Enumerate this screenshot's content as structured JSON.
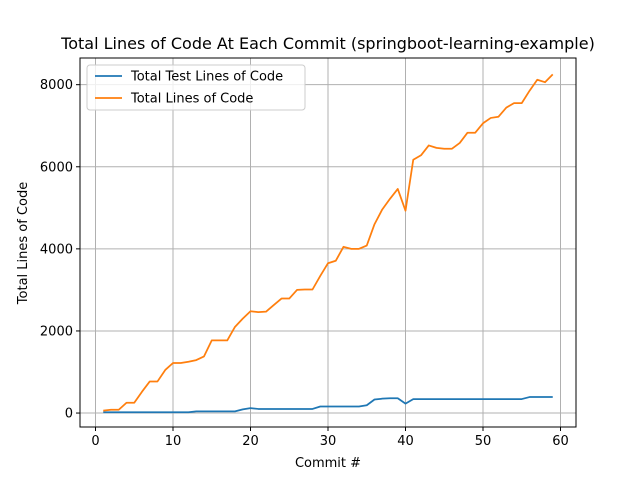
{
  "chart_data": {
    "type": "line",
    "title": "Total Lines of Code At Each Commit (springboot-learning-example)",
    "xlabel": "Commit #",
    "ylabel": "Total Lines of Code",
    "xlim": [
      -2,
      62
    ],
    "ylim": [
      -340,
      8650
    ],
    "xticks": [
      0,
      10,
      20,
      30,
      40,
      50,
      60
    ],
    "yticks": [
      0,
      2000,
      4000,
      6000,
      8000
    ],
    "grid": true,
    "legend_position": "upper-left",
    "x": [
      1,
      2,
      3,
      4,
      5,
      6,
      7,
      8,
      9,
      10,
      11,
      12,
      13,
      14,
      15,
      16,
      17,
      18,
      19,
      20,
      21,
      22,
      23,
      24,
      25,
      26,
      27,
      28,
      29,
      30,
      31,
      32,
      33,
      34,
      35,
      36,
      37,
      38,
      39,
      40,
      41,
      42,
      43,
      44,
      45,
      46,
      47,
      48,
      49,
      50,
      51,
      52,
      53,
      54,
      55,
      56,
      57,
      58,
      59
    ],
    "series": [
      {
        "name": "Total Test Lines of Code",
        "color": "#1f77b4",
        "values": [
          20,
          20,
          20,
          20,
          20,
          20,
          20,
          20,
          20,
          20,
          20,
          20,
          40,
          40,
          40,
          40,
          40,
          40,
          90,
          120,
          100,
          100,
          100,
          100,
          100,
          100,
          100,
          100,
          160,
          160,
          160,
          160,
          160,
          160,
          190,
          330,
          350,
          360,
          360,
          230,
          340,
          340,
          340,
          340,
          340,
          340,
          340,
          340,
          340,
          340,
          340,
          340,
          340,
          340,
          340,
          390,
          390,
          390,
          390
        ]
      },
      {
        "name": "Total Lines of Code",
        "color": "#ff7f0e",
        "values": [
          60,
          80,
          80,
          250,
          250,
          520,
          770,
          770,
          1050,
          1220,
          1220,
          1250,
          1290,
          1380,
          1770,
          1770,
          1770,
          2100,
          2300,
          2480,
          2460,
          2470,
          2630,
          2790,
          2790,
          3000,
          3010,
          3010,
          3340,
          3650,
          3710,
          4050,
          4000,
          4000,
          4080,
          4600,
          4960,
          5220,
          5460,
          4930,
          6170,
          6280,
          6520,
          6460,
          6440,
          6440,
          6580,
          6830,
          6830,
          7060,
          7190,
          7220,
          7440,
          7550,
          7550,
          7850,
          8120,
          8060,
          8250
        ]
      }
    ]
  }
}
